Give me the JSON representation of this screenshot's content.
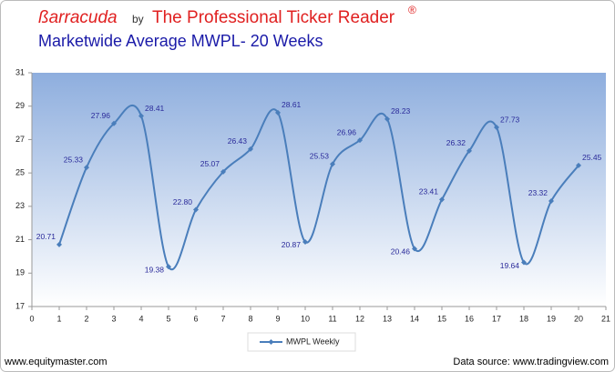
{
  "chart_data": {
    "type": "line",
    "brand": "ßarracuda",
    "by": "by",
    "title": "The Professional Ticker Reader",
    "title_mark": "®",
    "subtitle": "Marketwide Average MWPL- 20 Weeks",
    "x": [
      1,
      2,
      3,
      4,
      5,
      6,
      7,
      8,
      9,
      10,
      11,
      12,
      13,
      14,
      15,
      16,
      17,
      18,
      19,
      20
    ],
    "series": [
      {
        "name": "MWPL Weekly",
        "color": "#4a7ebb",
        "values": [
          20.71,
          25.33,
          27.96,
          28.41,
          19.38,
          22.8,
          25.07,
          26.43,
          28.61,
          20.87,
          25.53,
          26.96,
          28.23,
          20.46,
          23.41,
          26.32,
          27.73,
          19.64,
          23.32,
          25.45
        ],
        "value_labels": [
          "20.71",
          "25.33",
          "27.96",
          "28.41",
          "19.38",
          "22.80",
          "25.07",
          "26.43",
          "28.61",
          "20.87",
          "25.53",
          "26.96",
          "28.23",
          "20.46",
          "23.41",
          "26.32",
          "27.73",
          "19.64",
          "23.32",
          "25.45"
        ]
      }
    ],
    "xlim": [
      0,
      21
    ],
    "xticks": [
      0,
      1,
      2,
      3,
      4,
      5,
      6,
      7,
      8,
      9,
      10,
      11,
      12,
      13,
      14,
      15,
      16,
      17,
      18,
      19,
      20,
      21
    ],
    "ylim": [
      17,
      31
    ],
    "yticks": [
      17,
      19,
      21,
      23,
      25,
      27,
      29,
      31
    ],
    "legend": "bottom",
    "footer_left": "www.equitymaster.com",
    "footer_right": "Data source: www.tradingview.com"
  }
}
